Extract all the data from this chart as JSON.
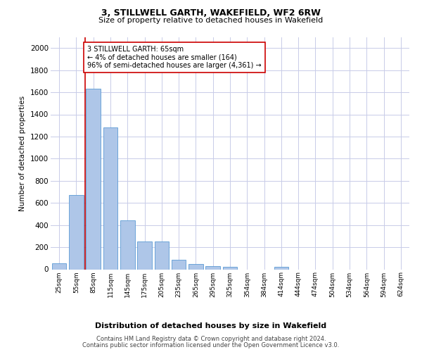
{
  "title1": "3, STILLWELL GARTH, WAKEFIELD, WF2 6RW",
  "title2": "Size of property relative to detached houses in Wakefield",
  "xlabel": "Distribution of detached houses by size in Wakefield",
  "ylabel": "Number of detached properties",
  "categories": [
    "25sqm",
    "55sqm",
    "85sqm",
    "115sqm",
    "145sqm",
    "175sqm",
    "205sqm",
    "235sqm",
    "265sqm",
    "295sqm",
    "325sqm",
    "354sqm",
    "384sqm",
    "414sqm",
    "444sqm",
    "474sqm",
    "504sqm",
    "534sqm",
    "564sqm",
    "594sqm",
    "624sqm"
  ],
  "values": [
    55,
    670,
    1630,
    1280,
    440,
    250,
    250,
    85,
    45,
    30,
    20,
    0,
    0,
    20,
    0,
    0,
    0,
    0,
    0,
    0,
    0
  ],
  "bar_color": "#aec6e8",
  "bar_edge_color": "#5b9bd5",
  "annotation_text": "3 STILLWELL GARTH: 65sqm\n← 4% of detached houses are smaller (164)\n96% of semi-detached houses are larger (4,361) →",
  "annotation_box_color": "#ffffff",
  "annotation_box_edge_color": "#cc0000",
  "property_line_color": "#cc0000",
  "ylim": [
    0,
    2100
  ],
  "yticks": [
    0,
    200,
    400,
    600,
    800,
    1000,
    1200,
    1400,
    1600,
    1800,
    2000
  ],
  "grid_color": "#c8cce8",
  "footer1": "Contains HM Land Registry data © Crown copyright and database right 2024.",
  "footer2": "Contains public sector information licensed under the Open Government Licence v3.0.",
  "background_color": "#ffffff",
  "fig_width": 6.0,
  "fig_height": 5.0,
  "dpi": 100
}
